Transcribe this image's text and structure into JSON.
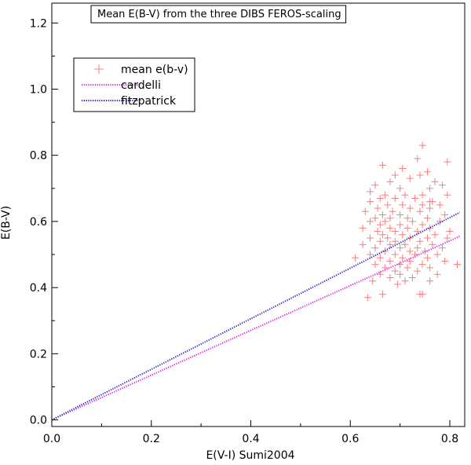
{
  "chart_data": {
    "type": "scatter",
    "title": "Mean E(B-V) from the three DIBS FEROS-scaling",
    "xlabel": "E(V-I) Sumi2004",
    "ylabel": "E(B-V)",
    "xlim": [
      0.0,
      0.83
    ],
    "ylim": [
      -0.02,
      1.26
    ],
    "x_ticks": [
      0.0,
      0.2,
      0.4,
      0.6,
      0.8
    ],
    "x_tick_labels": [
      "0.0",
      "0.2",
      "0.4",
      "0.6",
      "0.8"
    ],
    "y_ticks": [
      0.0,
      0.2,
      0.4,
      0.6,
      0.8,
      1.0,
      1.2
    ],
    "y_tick_labels": [
      "0.0",
      "0.2",
      "0.4",
      "0.6",
      "0.8",
      "1.0",
      "1.2"
    ],
    "grid": false,
    "legend_position": "top-left",
    "series": [
      {
        "name": "mean e(b-v)",
        "kind": "scatter",
        "marker": "plus",
        "color": "#f08080",
        "points": [
          [
            0.745,
            0.83
          ],
          [
            0.735,
            0.79
          ],
          [
            0.665,
            0.77
          ],
          [
            0.795,
            0.78
          ],
          [
            0.705,
            0.76
          ],
          [
            0.755,
            0.75
          ],
          [
            0.74,
            0.74
          ],
          [
            0.69,
            0.74
          ],
          [
            0.77,
            0.72
          ],
          [
            0.72,
            0.73
          ],
          [
            0.68,
            0.72
          ],
          [
            0.65,
            0.71
          ],
          [
            0.7,
            0.7
          ],
          [
            0.76,
            0.7
          ],
          [
            0.785,
            0.71
          ],
          [
            0.64,
            0.69
          ],
          [
            0.67,
            0.68
          ],
          [
            0.71,
            0.68
          ],
          [
            0.745,
            0.68
          ],
          [
            0.795,
            0.68
          ],
          [
            0.66,
            0.67
          ],
          [
            0.69,
            0.67
          ],
          [
            0.73,
            0.67
          ],
          [
            0.76,
            0.66
          ],
          [
            0.765,
            0.66
          ],
          [
            0.64,
            0.66
          ],
          [
            0.675,
            0.65
          ],
          [
            0.705,
            0.65
          ],
          [
            0.745,
            0.65
          ],
          [
            0.78,
            0.65
          ],
          [
            0.655,
            0.64
          ],
          [
            0.72,
            0.64
          ],
          [
            0.76,
            0.64
          ],
          [
            0.63,
            0.63
          ],
          [
            0.685,
            0.63
          ],
          [
            0.74,
            0.63
          ],
          [
            0.665,
            0.62
          ],
          [
            0.7,
            0.62
          ],
          [
            0.79,
            0.62
          ],
          [
            0.65,
            0.61
          ],
          [
            0.68,
            0.61
          ],
          [
            0.715,
            0.61
          ],
          [
            0.755,
            0.61
          ],
          [
            0.64,
            0.6
          ],
          [
            0.67,
            0.6
          ],
          [
            0.725,
            0.6
          ],
          [
            0.78,
            0.6
          ],
          [
            0.66,
            0.59
          ],
          [
            0.7,
            0.59
          ],
          [
            0.745,
            0.59
          ],
          [
            0.625,
            0.58
          ],
          [
            0.68,
            0.58
          ],
          [
            0.715,
            0.58
          ],
          [
            0.76,
            0.58
          ],
          [
            0.655,
            0.57
          ],
          [
            0.69,
            0.57
          ],
          [
            0.735,
            0.57
          ],
          [
            0.8,
            0.57
          ],
          [
            0.665,
            0.56
          ],
          [
            0.705,
            0.56
          ],
          [
            0.77,
            0.56
          ],
          [
            0.64,
            0.55
          ],
          [
            0.675,
            0.55
          ],
          [
            0.72,
            0.55
          ],
          [
            0.755,
            0.55
          ],
          [
            0.795,
            0.55
          ],
          [
            0.66,
            0.54
          ],
          [
            0.69,
            0.54
          ],
          [
            0.74,
            0.54
          ],
          [
            0.625,
            0.53
          ],
          [
            0.68,
            0.53
          ],
          [
            0.71,
            0.53
          ],
          [
            0.765,
            0.53
          ],
          [
            0.65,
            0.52
          ],
          [
            0.7,
            0.52
          ],
          [
            0.735,
            0.52
          ],
          [
            0.785,
            0.52
          ],
          [
            0.67,
            0.51
          ],
          [
            0.72,
            0.51
          ],
          [
            0.75,
            0.51
          ],
          [
            0.64,
            0.5
          ],
          [
            0.69,
            0.5
          ],
          [
            0.73,
            0.5
          ],
          [
            0.775,
            0.5
          ],
          [
            0.61,
            0.49
          ],
          [
            0.66,
            0.49
          ],
          [
            0.705,
            0.49
          ],
          [
            0.755,
            0.49
          ],
          [
            0.68,
            0.48
          ],
          [
            0.72,
            0.48
          ],
          [
            0.79,
            0.48
          ],
          [
            0.65,
            0.47
          ],
          [
            0.7,
            0.47
          ],
          [
            0.745,
            0.47
          ],
          [
            0.815,
            0.47
          ],
          [
            0.67,
            0.46
          ],
          [
            0.715,
            0.46
          ],
          [
            0.76,
            0.46
          ],
          [
            0.69,
            0.45
          ],
          [
            0.735,
            0.45
          ],
          [
            0.66,
            0.44
          ],
          [
            0.7,
            0.44
          ],
          [
            0.775,
            0.44
          ],
          [
            0.68,
            0.43
          ],
          [
            0.725,
            0.43
          ],
          [
            0.645,
            0.42
          ],
          [
            0.71,
            0.42
          ],
          [
            0.76,
            0.42
          ],
          [
            0.695,
            0.41
          ],
          [
            0.665,
            0.38
          ],
          [
            0.745,
            0.38
          ],
          [
            0.74,
            0.38
          ],
          [
            0.635,
            0.37
          ]
        ]
      },
      {
        "name": "cardelli",
        "kind": "line",
        "style": "dotted",
        "color": "#e020e0",
        "points": [
          [
            0.0,
            0.0
          ],
          [
            0.82,
            0.555
          ]
        ]
      },
      {
        "name": "fitzpatrick",
        "kind": "line",
        "style": "dotted",
        "color": "#2020c0",
        "points": [
          [
            0.0,
            0.0
          ],
          [
            0.82,
            0.627
          ]
        ]
      }
    ]
  }
}
